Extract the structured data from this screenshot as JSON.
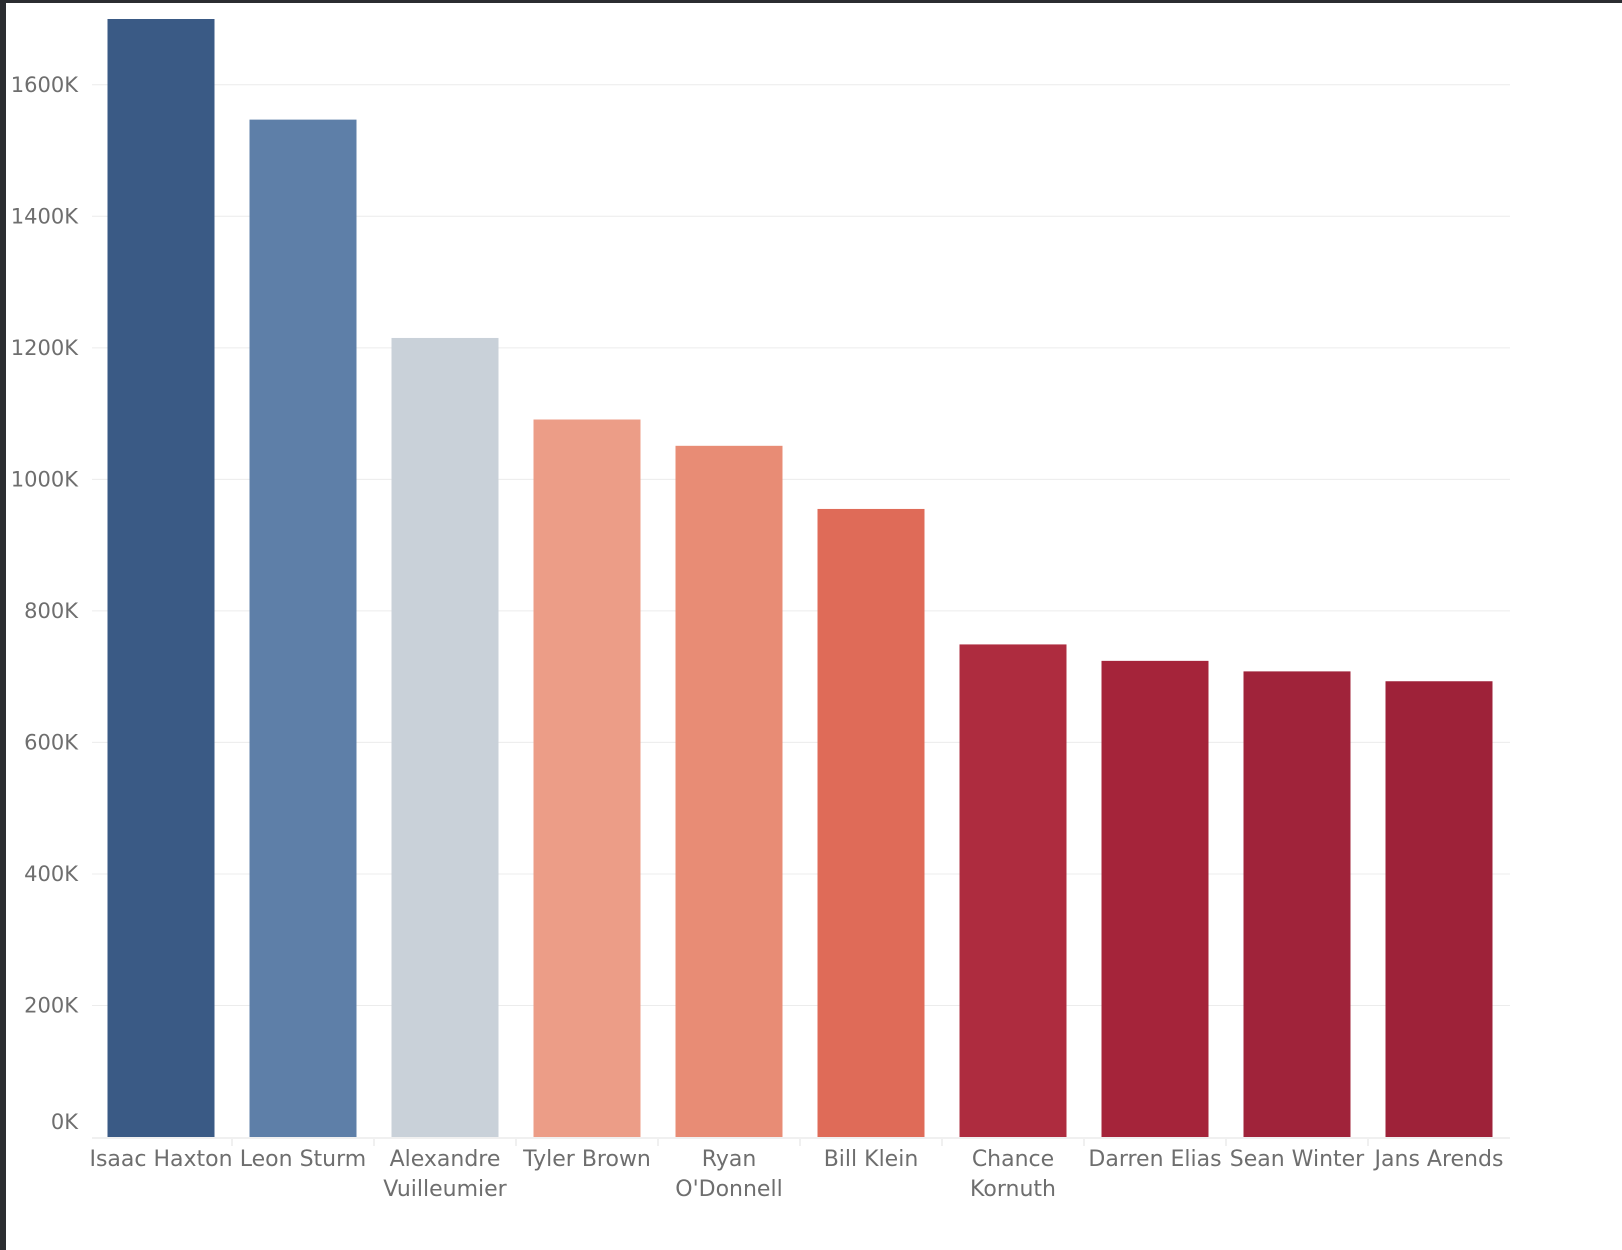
{
  "chart_data": {
    "type": "bar",
    "categories": [
      [
        "Isaac Haxton"
      ],
      [
        "Leon Sturm"
      ],
      [
        "Alexandre",
        "Vuilleumier"
      ],
      [
        "Tyler Brown"
      ],
      [
        "Ryan",
        "O'Donnell"
      ],
      [
        "Bill Klein"
      ],
      [
        "Chance",
        "Kornuth"
      ],
      [
        "Darren Elias"
      ],
      [
        "Sean Winter"
      ],
      [
        "Jans Arends"
      ]
    ],
    "values": [
      1700,
      1547,
      1215,
      1091,
      1051,
      955,
      749,
      724,
      708,
      693
    ],
    "colors": [
      "#3a5a85",
      "#5e7fa8",
      "#c9d1d9",
      "#ec9d87",
      "#e88c75",
      "#df6b58",
      "#ae2c3f",
      "#a5243a",
      "#a0233a",
      "#9e2239"
    ],
    "yticks": [
      0,
      200,
      400,
      600,
      800,
      1000,
      1200,
      1400,
      1600
    ],
    "ytick_labels": [
      "0K",
      "200K",
      "400K",
      "600K",
      "800K",
      "1000K",
      "1200K",
      "1400K",
      "1600K"
    ],
    "ylim": [
      0,
      1700
    ],
    "title": "",
    "xlabel": "",
    "ylabel": "",
    "grid": true
  }
}
